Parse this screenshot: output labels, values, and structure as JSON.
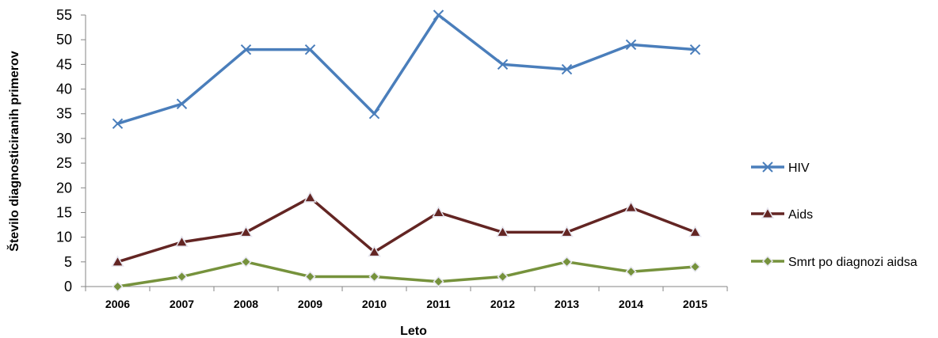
{
  "chart_data": {
    "type": "line",
    "title": "",
    "xlabel": "Leto",
    "ylabel": "Število diagnosticiranih primerov",
    "ylim": [
      0,
      55
    ],
    "yticks": [
      0,
      5,
      10,
      15,
      20,
      25,
      30,
      35,
      40,
      45,
      50,
      55
    ],
    "categories": [
      "2006",
      "2007",
      "2008",
      "2009",
      "2010",
      "2011",
      "2012",
      "2013",
      "2014",
      "2015"
    ],
    "grid": false,
    "legend_position": "right",
    "series": [
      {
        "name": "HIV",
        "color": "#4a7ebb",
        "marker": "x",
        "values": [
          33,
          37,
          48,
          48,
          35,
          55,
          45,
          44,
          49,
          48
        ]
      },
      {
        "name": "Aids",
        "color": "#632523",
        "marker": "triangle",
        "values": [
          5,
          9,
          11,
          18,
          7,
          15,
          11,
          11,
          16,
          11
        ]
      },
      {
        "name": "Smrt po diagnozi aidsa",
        "color": "#76923c",
        "marker": "diamond",
        "values": [
          0,
          2,
          5,
          2,
          2,
          1,
          2,
          5,
          3,
          4
        ]
      }
    ]
  }
}
